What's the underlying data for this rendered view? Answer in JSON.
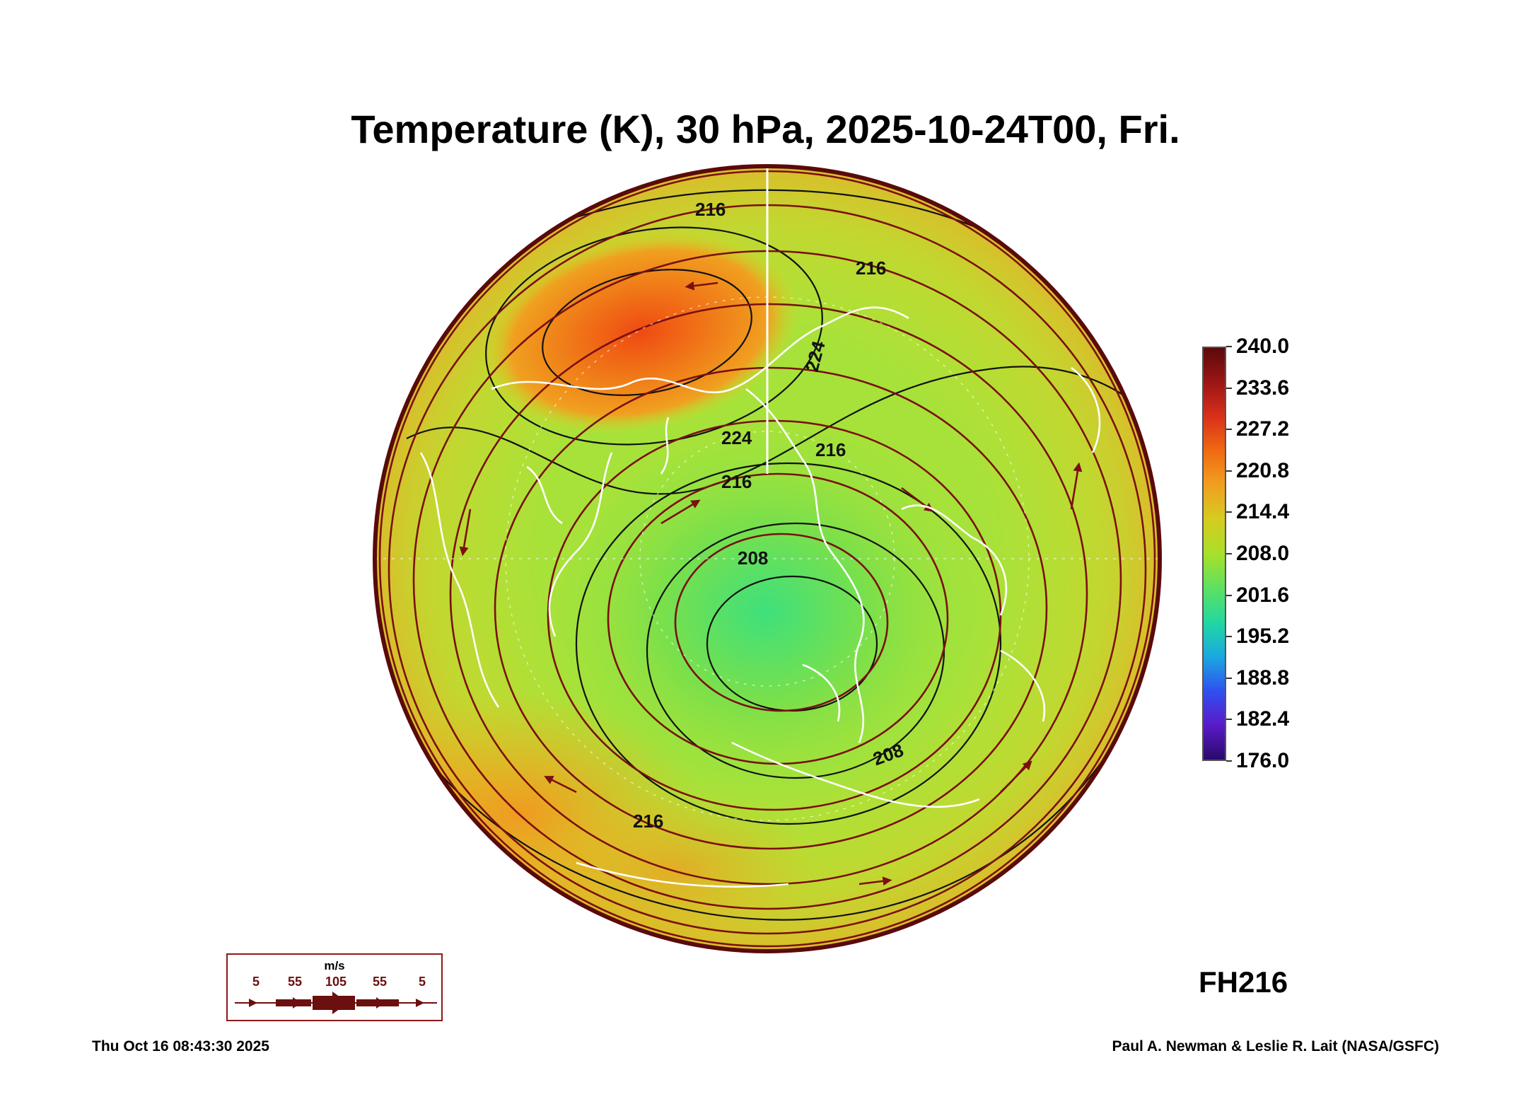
{
  "title": "Temperature (K), 30 hPa, 2025-10-24T00, Fri.",
  "forecast_hour": "FH216",
  "timestamp": "Thu Oct 16 08:43:30 2025",
  "credit": "Paul A. Newman & Leslie R. Lait (NASA/GSFC)",
  "colorbar": {
    "ticks": [
      "240.0",
      "233.6",
      "227.2",
      "220.8",
      "214.4",
      "208.0",
      "201.6",
      "195.2",
      "188.8",
      "182.4",
      "176.0"
    ],
    "colors": [
      "#5a0a0a",
      "#9c1515",
      "#d9301a",
      "#f06a12",
      "#f0a020",
      "#d6cc20",
      "#a8e02a",
      "#5ee062",
      "#22d8a0",
      "#1aa8e0",
      "#3050f0",
      "#5a1ac8",
      "#2a0a6a"
    ]
  },
  "map": {
    "contour_labels": [
      "216",
      "216",
      "216",
      "216",
      "224",
      "224",
      "208",
      "208",
      "216"
    ],
    "colors": {
      "background_green": "#a6e23a",
      "yellow_green": "#cfdc2a",
      "orange": "#f0a020",
      "red_orange": "#ef5a14",
      "cold_core": "#3ee07c",
      "streamline": "#7a1010",
      "contour": "#111111",
      "coastline": "#ffffff"
    }
  },
  "wind_key": {
    "unit": "m/s",
    "labels": [
      "5",
      "55",
      "105",
      "55",
      "5"
    ]
  }
}
